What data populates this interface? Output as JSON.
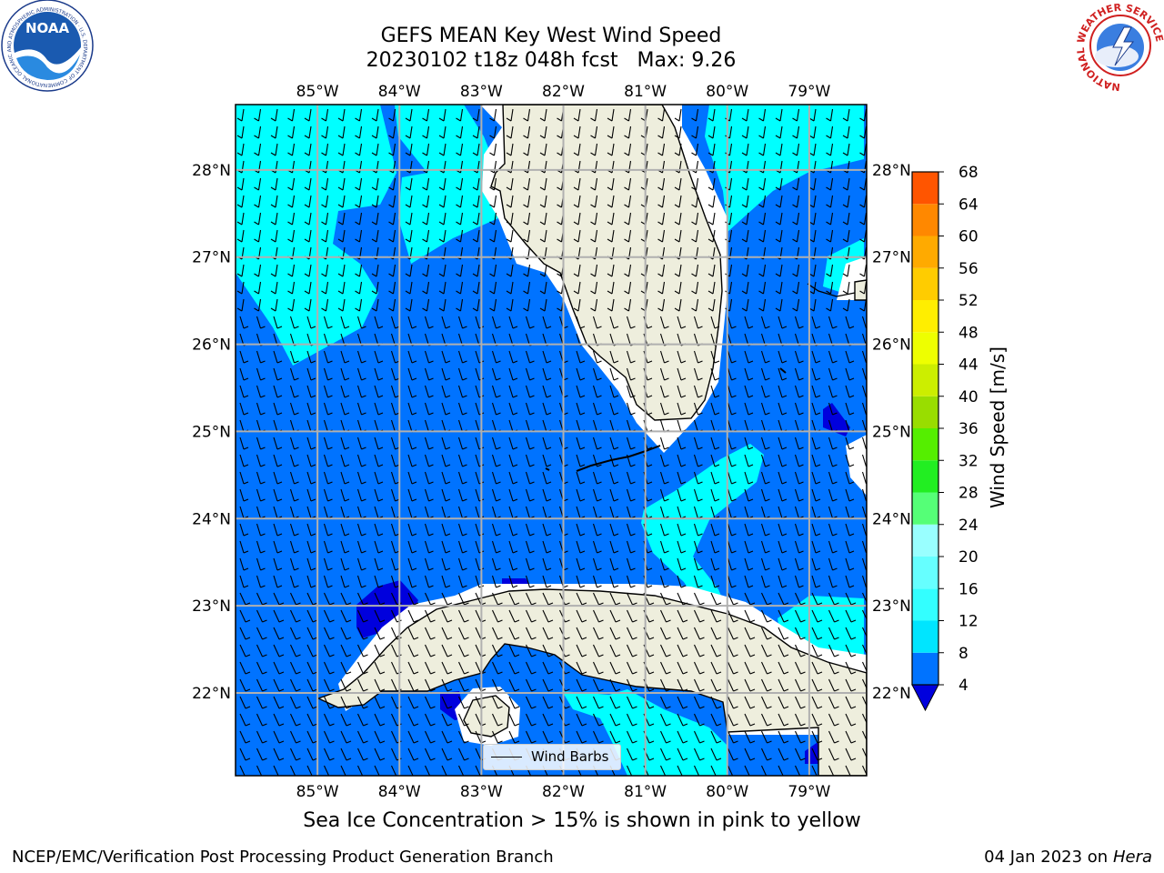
{
  "title": {
    "line1": "GEFS MEAN Key West Wind Speed",
    "line2": "20230102 t18z 048h fcst   Max: 9.26"
  },
  "map": {
    "lon_range": [
      -86,
      -78.3
    ],
    "lat_range": [
      21.05,
      28.75
    ],
    "lon_ticks": [
      -85,
      -84,
      -83,
      -82,
      -81,
      -80,
      -79
    ],
    "lon_tick_labels": [
      "85°W",
      "84°W",
      "83°W",
      "82°W",
      "81°W",
      "80°W",
      "79°W"
    ],
    "lat_ticks": [
      22,
      23,
      24,
      25,
      26,
      27,
      28
    ],
    "lat_tick_labels": [
      "22°N",
      "23°N",
      "24°N",
      "25°N",
      "26°N",
      "27°N",
      "28°N"
    ],
    "grid": true,
    "ocean_color": "#0073ff",
    "land_color": "#eeeedd",
    "light_band_color": "#00ffff",
    "low_wind_color": "#0000dd"
  },
  "colorbar": {
    "label": "Wind Speed [m/s]",
    "levels": [
      4,
      8,
      12,
      16,
      20,
      24,
      28,
      32,
      36,
      40,
      44,
      48,
      52,
      56,
      60,
      64,
      68
    ],
    "tick_labels": [
      "4",
      "8",
      "12",
      "16",
      "20",
      "24",
      "28",
      "32",
      "36",
      "40",
      "44",
      "48",
      "52",
      "56",
      "60",
      "64",
      "68"
    ],
    "colors": [
      "#0073ff",
      "#00e5ff",
      "#33ffff",
      "#66ffff",
      "#99ffff",
      "#55ff77",
      "#22ee22",
      "#55ee00",
      "#99dd00",
      "#ccee00",
      "#eeff00",
      "#ffee00",
      "#ffcc00",
      "#ffaa00",
      "#ff8800",
      "#ff5500",
      "#ff2200",
      "#ff0000"
    ],
    "under_color": "#0000dd"
  },
  "legend": {
    "label": "Wind Barbs"
  },
  "caption": "Sea Ice Concentration > 15% is shown in pink to yellow",
  "footer": {
    "left": "NCEP/EMC/Verification Post Processing Product Generation Branch",
    "date": "04 Jan 2023 on ",
    "host": "Hera"
  },
  "logos": {
    "left": {
      "text": "NOAA",
      "ring_text": "NATIONAL OCEANIC AND ATMOSPHERIC ADMINISTRATION · U.S. DEPARTMENT OF COMMERCE"
    },
    "right": {
      "ring_text": "NATIONAL WEATHER SERVICE"
    }
  }
}
